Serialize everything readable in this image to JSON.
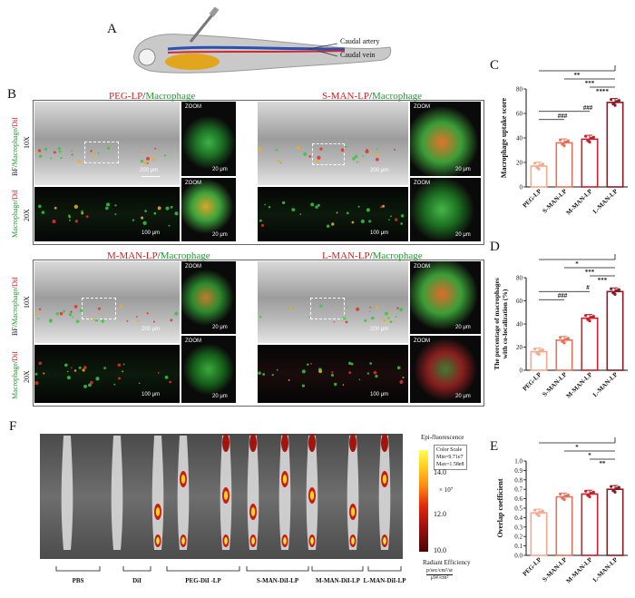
{
  "panel_letters": {
    "a": "A",
    "b": "B",
    "c": "C",
    "d": "D",
    "e": "E",
    "f": "F"
  },
  "schematic": {
    "artery": "Caudal artery",
    "vein": "Caudal vein"
  },
  "panel_b": {
    "titles": [
      {
        "red": "PEG-LP",
        "green": "Macrophage"
      },
      {
        "red": "S-MAN-LP",
        "green": "Macrophage"
      },
      {
        "red": "M-MAN-LP",
        "green": "Macrophage"
      },
      {
        "red": "L-MAN-LP",
        "green": "Macrophage"
      }
    ],
    "row_labels": {
      "bf_prefix": "BF/",
      "macrophage": "Macrophage",
      "slash": "/",
      "dil": "DiI",
      "mag10": "10X",
      "mag20": "20X"
    },
    "zoom": "ZOOM",
    "scale_200": "200 μm",
    "scale_100": "100 μm",
    "scale_20": "20 μm"
  },
  "panel_f": {
    "groups": [
      "PBS",
      "DiI",
      "PEG-DiI -LP",
      "S-MAN-DiI-LP",
      "M-MAN-DiI-LP",
      "L-MAN-DiI-LP"
    ],
    "colorbar": {
      "title": "Epi-fluorescence",
      "scale_line1": "Color Scale",
      "scale_line2": "Min=9.71e7",
      "scale_line3": "Max=1.58e8",
      "multiplier": "× 10⁷",
      "ticks": [
        "14.0",
        "12.0",
        "10.0"
      ],
      "label": "Radiant Efficiency",
      "units1": "p/sec/cm²/sr",
      "units2": "μW/cm²"
    }
  },
  "colors": {
    "bar1": "#f5a98f",
    "bar2": "#e57258",
    "bar3": "#c8202a",
    "bar4": "#8b1a24"
  },
  "chart_data": [
    {
      "type": "bar",
      "panel": "C",
      "categories": [
        "PEG-LP",
        "S-MAN-LP",
        "M-MAN-LP",
        "L-MAN-LP"
      ],
      "values": [
        17,
        36,
        39,
        69
      ],
      "ylabel": "Macrophage uptake score",
      "ylim": [
        0,
        80
      ],
      "yticks": [
        "0",
        "20",
        "40",
        "60",
        "80"
      ],
      "sig_top": [
        "**",
        "***",
        "****"
      ],
      "sig_hash": [
        "###",
        "###"
      ],
      "grid": false
    },
    {
      "type": "bar",
      "panel": "D",
      "categories": [
        "PEG-LP",
        "S-MAN-LP",
        "M-MAN-LP",
        "L-MAN-LP"
      ],
      "values": [
        16,
        26,
        45,
        68
      ],
      "ylabel": "The percentage of macrophages with co-localization (%)",
      "ylim": [
        0,
        80
      ],
      "yticks": [
        "0",
        "20",
        "40",
        "60",
        "80"
      ],
      "sig_top": [
        "*",
        "***",
        "***"
      ],
      "sig_hash": [
        "###",
        "#"
      ],
      "grid": false
    },
    {
      "type": "bar",
      "panel": "E",
      "categories": [
        "PEG-LP",
        "S-MAN-LP",
        "M-MAN-LP",
        "L-MAN-LP"
      ],
      "values": [
        0.45,
        0.62,
        0.65,
        0.7
      ],
      "ylabel": "Overlap coefficient",
      "ylim": [
        0,
        1.0
      ],
      "yticks": [
        "0.0",
        "0.1",
        "0.2",
        "0.3",
        "0.4",
        "0.5",
        "0.6",
        "0.7",
        "0.8",
        "0.9",
        "1.0"
      ],
      "sig_top": [
        "*",
        "*",
        "**"
      ],
      "grid": false
    }
  ]
}
